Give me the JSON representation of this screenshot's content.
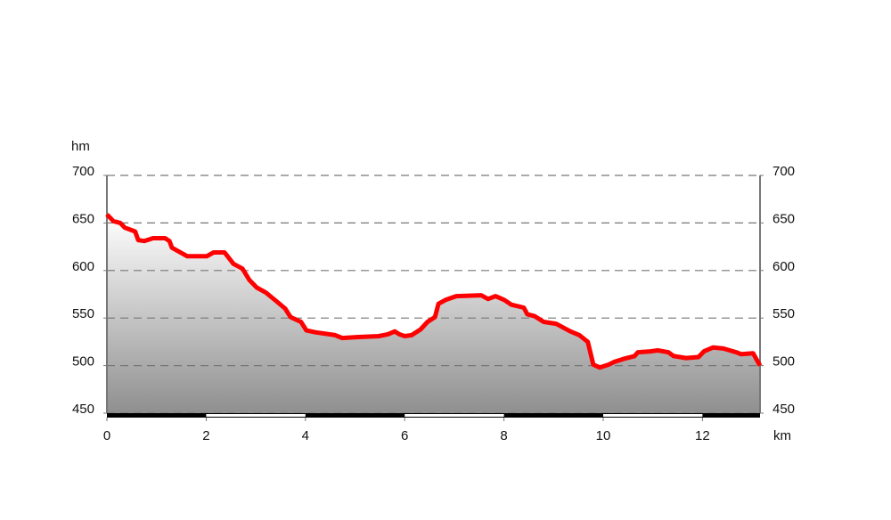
{
  "chart_data": {
    "type": "area",
    "y_label": "hm",
    "x_label": "km",
    "x": [
      0,
      0.13,
      0.27,
      0.36,
      0.57,
      0.63,
      0.75,
      0.93,
      1.17,
      1.26,
      1.31,
      1.62,
      2.01,
      2.15,
      2.37,
      2.55,
      2.73,
      2.87,
      3.02,
      3.2,
      3.41,
      3.59,
      3.7,
      3.91,
      4.02,
      4.2,
      4.6,
      4.74,
      5.03,
      5.48,
      5.66,
      5.8,
      5.89,
      6.0,
      6.14,
      6.32,
      6.46,
      6.61,
      6.68,
      6.82,
      7.04,
      7.54,
      7.68,
      7.83,
      8.01,
      8.15,
      8.4,
      8.47,
      8.62,
      8.8,
      9.05,
      9.34,
      9.52,
      9.69,
      9.8,
      9.93,
      10.11,
      10.23,
      10.41,
      10.63,
      10.7,
      10.95,
      11.1,
      11.31,
      11.42,
      11.67,
      11.92,
      12.03,
      12.21,
      12.42,
      12.68,
      12.78,
      13.02,
      13.16
    ],
    "series": [
      {
        "color": "#ff0000",
        "values": [
          659,
          652,
          650,
          645,
          641,
          632,
          631,
          634,
          634,
          631,
          624,
          615,
          615,
          619,
          619,
          607,
          602,
          590,
          582,
          577,
          568,
          560,
          551,
          546,
          537,
          535,
          532,
          529,
          530,
          531,
          533,
          536,
          533,
          531,
          532,
          538,
          546,
          551,
          565,
          569,
          573,
          574,
          570,
          573,
          569,
          564,
          561,
          554,
          552,
          546,
          544,
          536,
          532,
          525,
          501,
          498,
          501,
          504,
          507,
          510,
          514,
          515,
          516,
          514,
          510,
          508,
          509,
          515,
          519,
          518,
          514,
          512,
          513,
          500
        ]
      }
    ],
    "fill_colors": [
      "#ffffff",
      "#8f8f8f"
    ],
    "xlim": [
      0,
      13.16
    ],
    "xticks": [
      0,
      2,
      4,
      6,
      8,
      10,
      12
    ],
    "ylim": [
      450,
      700
    ],
    "yticks": [
      450,
      500,
      550,
      600,
      650,
      700
    ],
    "grid": true
  }
}
